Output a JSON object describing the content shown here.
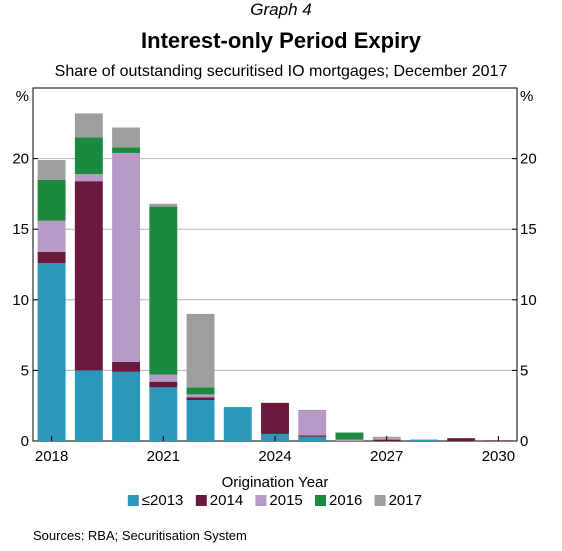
{
  "header": {
    "graph_label": "Graph 4",
    "title": "Interest-only Period Expiry",
    "subtitle": "Share of outstanding securitised IO mortgages; December 2017"
  },
  "footer": {
    "source": "Sources:  RBA; Securitisation System"
  },
  "chart_data": {
    "type": "bar",
    "stacked": true,
    "title": "Interest-only Period Expiry",
    "subtitle": "Share of outstanding securitised IO mortgages; December 2017",
    "xlabel": "Origination Year",
    "ylabel_left": "%",
    "ylabel_right": "%",
    "ylim": [
      0,
      25
    ],
    "yticks": [
      0,
      5,
      10,
      15,
      20
    ],
    "xtick_labels": [
      "2018",
      "2021",
      "2024",
      "2027",
      "2030"
    ],
    "grid": true,
    "legend_position": "bottom",
    "categories": [
      "2018",
      "2019",
      "2020",
      "2021",
      "2022",
      "2023",
      "2024",
      "2025",
      "2026",
      "2027",
      "2028",
      "2029",
      "2030"
    ],
    "series": [
      {
        "name": "≤2013",
        "color": "#2a97bb",
        "values": [
          12.6,
          5.0,
          4.9,
          3.8,
          2.9,
          2.4,
          0.5,
          0.3,
          0.0,
          0.0,
          0.1,
          0.0,
          0.0
        ]
      },
      {
        "name": "2014",
        "color": "#6b1a3f",
        "values": [
          0.8,
          13.4,
          0.7,
          0.4,
          0.2,
          0.0,
          2.2,
          0.1,
          0.0,
          0.1,
          0.0,
          0.2,
          0.05
        ]
      },
      {
        "name": "2015",
        "color": "#b89ac6",
        "values": [
          2.2,
          0.5,
          14.8,
          0.5,
          0.2,
          0.0,
          0.0,
          1.7,
          0.1,
          0.1,
          0.0,
          0.0,
          0.0
        ]
      },
      {
        "name": "2016",
        "color": "#1b8a3f",
        "values": [
          2.9,
          2.6,
          0.4,
          11.9,
          0.5,
          0.0,
          0.0,
          0.0,
          0.5,
          0.0,
          0.0,
          0.0,
          0.0
        ]
      },
      {
        "name": "2017",
        "color": "#9e9e9e",
        "values": [
          1.4,
          1.7,
          1.4,
          0.2,
          5.2,
          0.0,
          0.0,
          0.1,
          0.0,
          0.1,
          0.0,
          0.0,
          0.0
        ]
      }
    ]
  }
}
